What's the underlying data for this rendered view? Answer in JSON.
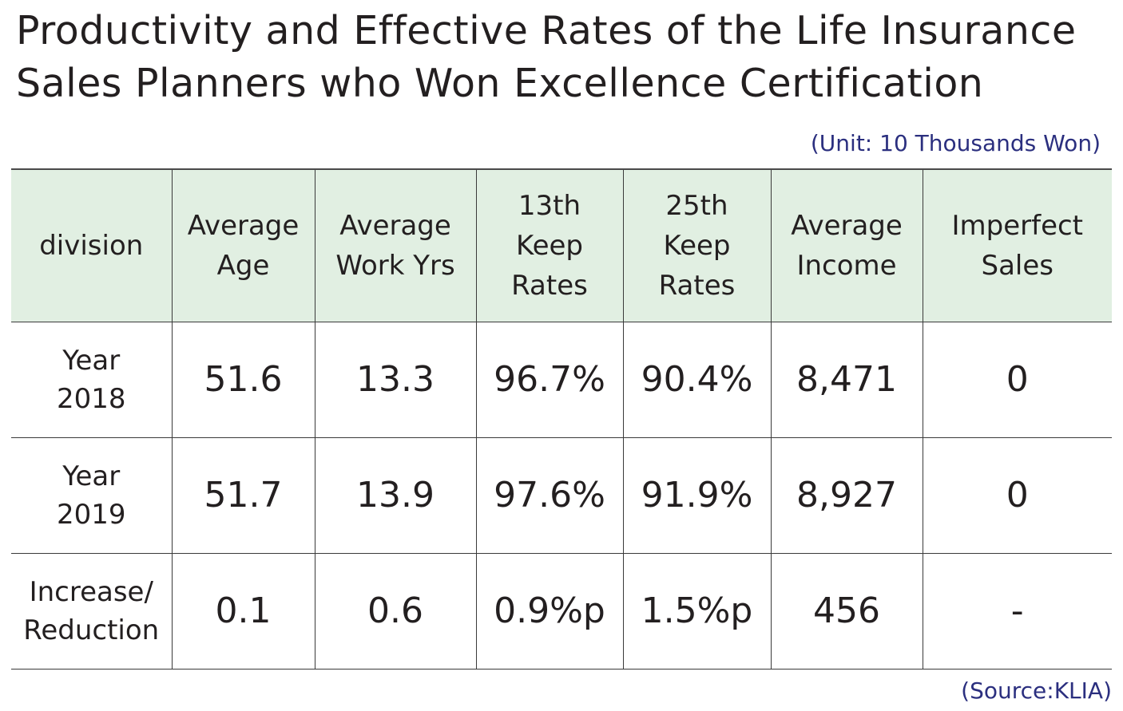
{
  "title": "Productivity and Effective Rates of the Life Insurance\nSales Planners who Won Excellence Certification",
  "unit_note": "(Unit: 10 Thousands Won)",
  "source_note": "(Source:KLIA)",
  "colors": {
    "header_background": "#e1efe2",
    "note_text": "#2b2f7f",
    "body_text": "#231f20"
  },
  "table": {
    "headers": [
      "division",
      "Average\nAge",
      "Average\nWork Yrs",
      "13th\nKeep\nRates",
      "25th\nKeep\nRates",
      "Average\nIncome",
      "Imperfect\nSales"
    ],
    "rows": [
      {
        "label": "Year\n2018",
        "cells": [
          "51.6",
          "13.3",
          "96.7%",
          "90.4%",
          "8,471",
          "0"
        ]
      },
      {
        "label": "Year\n2019",
        "cells": [
          "51.7",
          "13.9",
          "97.6%",
          "91.9%",
          "8,927",
          "0"
        ]
      },
      {
        "label": "Increase/\nReduction",
        "cells": [
          "0.1",
          "0.6",
          "0.9%p",
          "1.5%p",
          "456",
          "-"
        ]
      }
    ]
  }
}
